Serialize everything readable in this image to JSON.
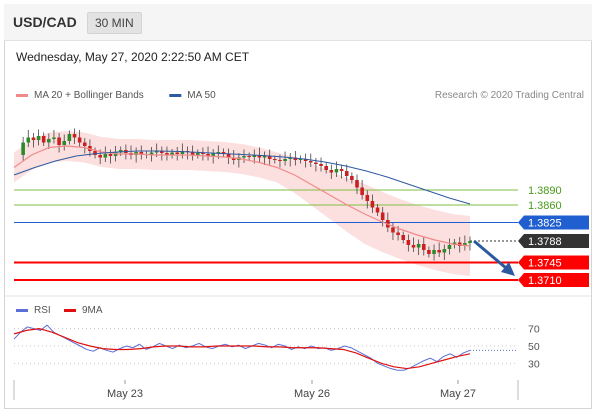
{
  "header": {
    "symbol": "USD/CAD",
    "timeframe": "30 MIN",
    "datetime": "Wednesday, May 27, 2020 2:22:50 AM CET"
  },
  "legend_main": [
    {
      "label": "MA 20 + Bollinger Bands",
      "color": "#f08a8a"
    },
    {
      "label": "MA 50",
      "color": "#2c5aa0"
    }
  ],
  "legend_rsi": [
    {
      "label": "RSI",
      "color": "#5b6fd6"
    },
    {
      "label": "9MA",
      "color": "#e01010"
    }
  ],
  "credit": "Research © 2020 Trading Central",
  "colors": {
    "candle_up": "#2b8a2b",
    "candle_down": "#cc2020",
    "bollinger_fill": "#fbd4d4",
    "ma20": "#f08a8a",
    "ma50": "#2c5aa0",
    "support": "#ff0000",
    "resistance_green": "#7fbf40",
    "pivot_blue": "#1f5fcf",
    "current": "#333333",
    "arrow": "#2c5aa0"
  },
  "chart_data": [
    {
      "type": "candlestick",
      "symbol": "USD/CAD",
      "interval": "30 MIN",
      "x_ticks": [
        "May 23",
        "May 26",
        "May 27"
      ],
      "ylim": [
        1.369,
        1.405
      ],
      "levels": [
        {
          "value": 1.389,
          "label": "1.3890",
          "kind": "resistance",
          "color": "#7fbf40"
        },
        {
          "value": 1.386,
          "label": "1.3860",
          "kind": "resistance",
          "color": "#7fbf40"
        },
        {
          "value": 1.3825,
          "label": "1.3825",
          "kind": "pivot",
          "color": "#1f5fcf"
        },
        {
          "value": 1.3788,
          "label": "1.3788",
          "kind": "last_price",
          "color": "#333333"
        },
        {
          "value": 1.3745,
          "label": "1.3745",
          "kind": "support",
          "color": "#ff0000"
        },
        {
          "value": 1.371,
          "label": "1.3710",
          "kind": "support",
          "color": "#ff0000"
        }
      ],
      "forecast_arrow": {
        "from": 1.3788,
        "to": 1.371,
        "direction": "down"
      },
      "price_path": [
        1.396,
        1.3985,
        1.3995,
        1.399,
        1.3998,
        1.3985,
        1.3992,
        1.3995,
        1.398,
        1.3988,
        1.4002,
        1.3995,
        1.3985,
        1.3978,
        1.3968,
        1.396,
        1.3955,
        1.3962,
        1.3958,
        1.3965,
        1.397,
        1.3964,
        1.396,
        1.3966,
        1.3962,
        1.396,
        1.3965,
        1.3968,
        1.3964,
        1.396,
        1.3965,
        1.3962,
        1.3968,
        1.3966,
        1.396,
        1.3964,
        1.3962,
        1.3958,
        1.3963,
        1.3966,
        1.3962,
        1.3955,
        1.395,
        1.3955,
        1.3958,
        1.3956,
        1.396,
        1.3955,
        1.3958,
        1.3952,
        1.395,
        1.3948,
        1.3952,
        1.3955,
        1.395,
        1.3952,
        1.3948,
        1.3945,
        1.3942,
        1.3938,
        1.393,
        1.3925,
        1.3932,
        1.3928,
        1.3918,
        1.391,
        1.3895,
        1.388,
        1.3868,
        1.3855,
        1.3845,
        1.383,
        1.3815,
        1.3805,
        1.38,
        1.379,
        1.378,
        1.3775,
        1.3782,
        1.377,
        1.3762,
        1.377,
        1.3765,
        1.3772,
        1.378,
        1.3785,
        1.3778,
        1.3784,
        1.3788
      ],
      "ma20": [
        1.3935,
        1.396,
        1.3975,
        1.3978,
        1.3975,
        1.3966,
        1.3962,
        1.3962,
        1.396,
        1.396,
        1.396,
        1.3958,
        1.3956,
        1.3952,
        1.3945,
        1.3935,
        1.392,
        1.39,
        1.388,
        1.386,
        1.3842,
        1.3826,
        1.3812,
        1.38,
        1.379,
        1.3782,
        1.3778
      ],
      "ma50": [
        1.392,
        1.3935,
        1.3948,
        1.3958,
        1.3963,
        1.3966,
        1.3968,
        1.3968,
        1.3967,
        1.3965,
        1.3963,
        1.3961,
        1.3959,
        1.3956,
        1.3952,
        1.3946,
        1.3938,
        1.3928,
        1.3916,
        1.3902,
        1.3888,
        1.3874,
        1.3862
      ]
    },
    {
      "type": "line",
      "name": "RSI panel",
      "ylim": [
        20,
        80
      ],
      "y_ticks": [
        70,
        50,
        30
      ],
      "series": [
        {
          "name": "RSI",
          "color": "#5b6fd6",
          "values": [
            58,
            66,
            72,
            70,
            68,
            74,
            66,
            62,
            58,
            54,
            50,
            46,
            44,
            48,
            45,
            43,
            47,
            50,
            48,
            52,
            46,
            49,
            53,
            50,
            47,
            51,
            48,
            50,
            53,
            49,
            47,
            50,
            52,
            49,
            51,
            47,
            50,
            53,
            51,
            48,
            52,
            50,
            46,
            49,
            47,
            50,
            47,
            48,
            45,
            47,
            50,
            48,
            44,
            40,
            36,
            30,
            27,
            24,
            22,
            22,
            25,
            29,
            33,
            36,
            32,
            38,
            41,
            37,
            42,
            45
          ]
        },
        {
          "name": "9MA",
          "color": "#e01010",
          "values": [
            64,
            68,
            70,
            66,
            60,
            54,
            50,
            47,
            46,
            46,
            47,
            49,
            50,
            50,
            49,
            49,
            50,
            50,
            50,
            50,
            49,
            49,
            48,
            48,
            48,
            47,
            46,
            42,
            36,
            30,
            26,
            24,
            26,
            30,
            34,
            38,
            41
          ]
        }
      ]
    }
  ]
}
